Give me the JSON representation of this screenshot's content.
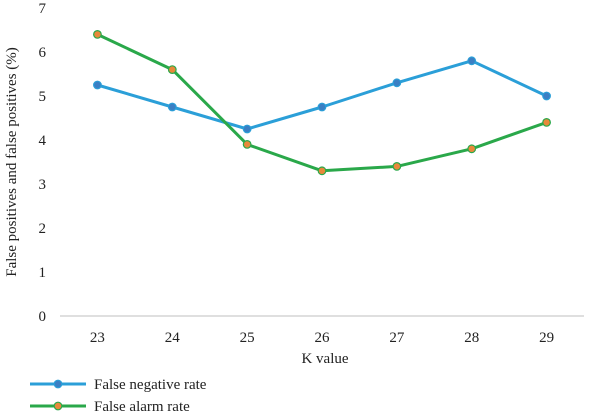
{
  "chart_data": {
    "type": "line",
    "title": "",
    "xlabel": "K value",
    "ylabel": "False positives and false positives (%)",
    "categories": [
      "23",
      "24",
      "25",
      "26",
      "27",
      "28",
      "29"
    ],
    "ylim": [
      0,
      7
    ],
    "yticks": [
      "0",
      "1",
      "2",
      "3",
      "4",
      "5",
      "6",
      "7"
    ],
    "grid": false,
    "legend_position": "bottom-left",
    "series": [
      {
        "name": "False negative rate",
        "color": "#2b9fd8",
        "marker_color": "#3a7fc4",
        "values": [
          5.25,
          4.75,
          4.25,
          4.75,
          5.3,
          5.8,
          5.0
        ]
      },
      {
        "name": "False alarm rate",
        "color": "#2aa84a",
        "marker_color": "#e8893a",
        "values": [
          6.4,
          5.6,
          3.9,
          3.3,
          3.4,
          3.8,
          4.4
        ]
      }
    ]
  }
}
